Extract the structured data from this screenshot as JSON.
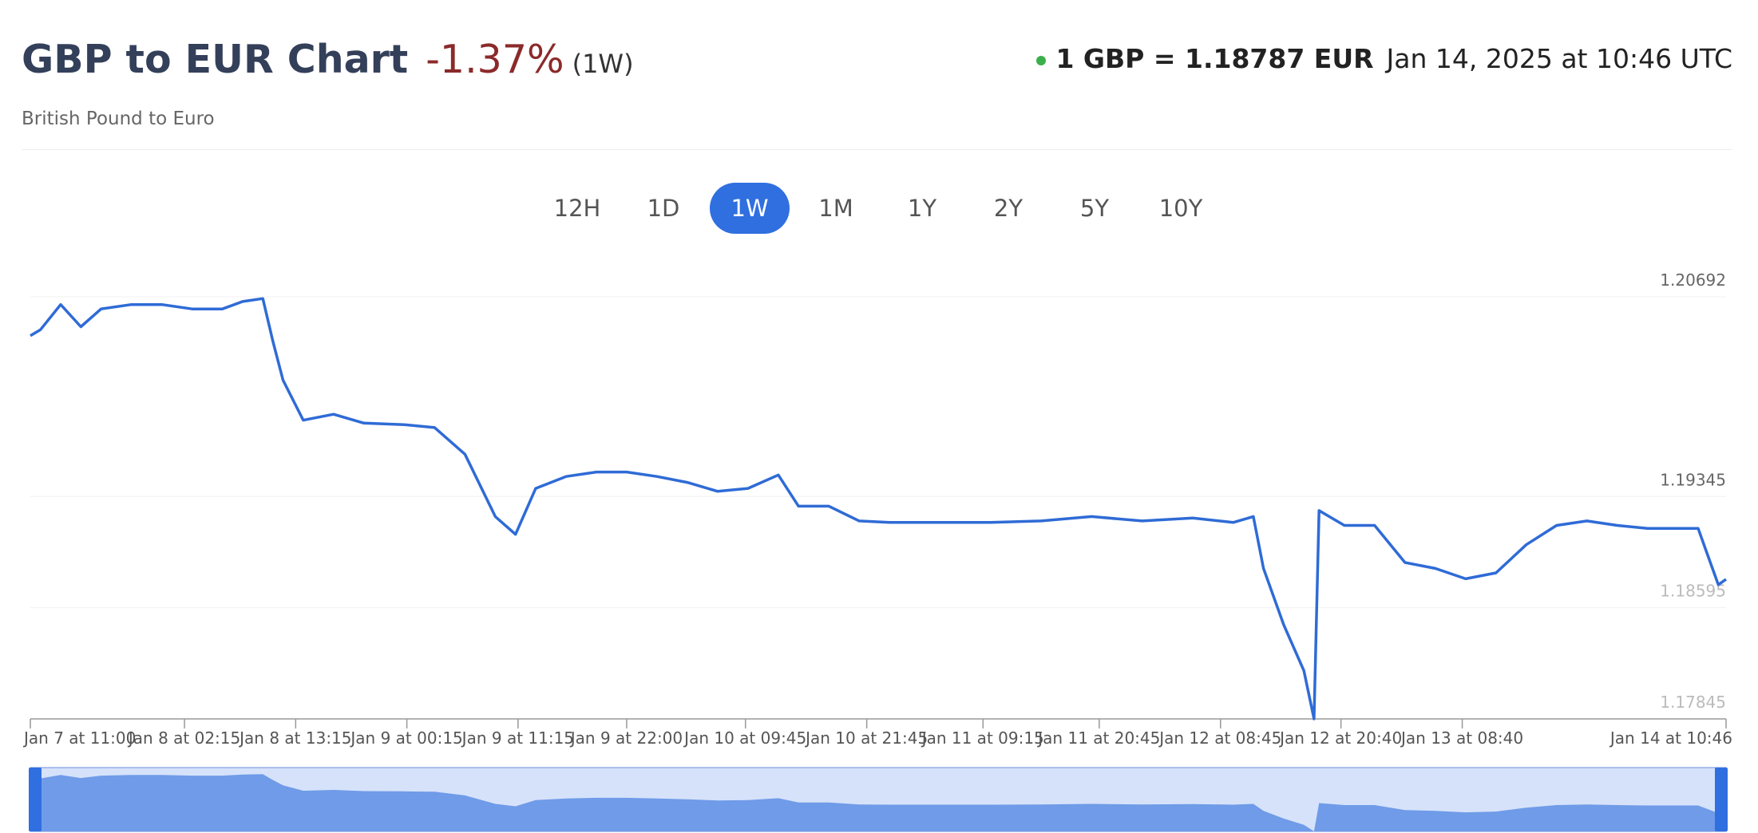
{
  "header": {
    "title": "GBP to EUR Chart",
    "change": "-1.37%",
    "period": "(1W)",
    "subtitle": "British Pound to Euro",
    "rate": "1 GBP = 1.18787 EUR",
    "timestamp": "Jan 14, 2025 at 10:46 UTC"
  },
  "ranges": [
    "12H",
    "1D",
    "1W",
    "1M",
    "1Y",
    "2Y",
    "5Y",
    "10Y"
  ],
  "selected_range": "1W",
  "chart_data": {
    "type": "line",
    "color": "#2f6bd6",
    "x": [
      "2025-01-07T11:00",
      "2025-01-07T12:00",
      "2025-01-07T14:00",
      "2025-01-07T16:00",
      "2025-01-07T18:00",
      "2025-01-07T21:00",
      "2025-01-08T00:00",
      "2025-01-08T03:00",
      "2025-01-08T06:00",
      "2025-01-08T08:00",
      "2025-01-08T10:00",
      "2025-01-08T11:00",
      "2025-01-08T12:00",
      "2025-01-08T14:00",
      "2025-01-08T17:00",
      "2025-01-08T20:00",
      "2025-01-09T00:00",
      "2025-01-09T03:00",
      "2025-01-09T06:00",
      "2025-01-09T09:00",
      "2025-01-09T11:00",
      "2025-01-09T13:00",
      "2025-01-09T16:00",
      "2025-01-09T19:00",
      "2025-01-09T22:00",
      "2025-01-10T01:00",
      "2025-01-10T04:00",
      "2025-01-10T07:00",
      "2025-01-10T10:00",
      "2025-01-10T13:00",
      "2025-01-10T15:00",
      "2025-01-10T18:00",
      "2025-01-10T21:00",
      "2025-01-11T00:00",
      "2025-01-11T05:00",
      "2025-01-11T10:00",
      "2025-01-11T15:00",
      "2025-01-11T20:00",
      "2025-01-12T01:00",
      "2025-01-12T06:00",
      "2025-01-12T10:00",
      "2025-01-12T12:00",
      "2025-01-12T13:00",
      "2025-01-12T15:00",
      "2025-01-12T17:00",
      "2025-01-12T18:00",
      "2025-01-12T18:30",
      "2025-01-12T21:00",
      "2025-01-13T00:00",
      "2025-01-13T03:00",
      "2025-01-13T06:00",
      "2025-01-13T09:00",
      "2025-01-13T12:00",
      "2025-01-13T15:00",
      "2025-01-13T18:00",
      "2025-01-13T21:00",
      "2025-01-14T00:00",
      "2025-01-14T03:00",
      "2025-01-14T06:00",
      "2025-01-14T08:00",
      "2025-01-14T09:00",
      "2025-01-14T10:00",
      "2025-01-14T10:46"
    ],
    "values": [
      1.2043,
      1.2047,
      1.2064,
      1.2049,
      1.2061,
      1.2064,
      1.2064,
      1.2061,
      1.2061,
      1.2066,
      1.2068,
      1.2039,
      1.2013,
      1.1986,
      1.199,
      1.1984,
      1.1983,
      1.1981,
      1.1963,
      1.1921,
      1.1909,
      1.194,
      1.1948,
      1.1951,
      1.1951,
      1.1948,
      1.1944,
      1.1938,
      1.194,
      1.1949,
      1.1928,
      1.1928,
      1.1918,
      1.1917,
      1.1917,
      1.1917,
      1.1918,
      1.1921,
      1.1918,
      1.192,
      1.1917,
      1.1921,
      1.1886,
      1.1848,
      1.1817,
      1.17845,
      1.1925,
      1.1915,
      1.1915,
      1.189,
      1.1886,
      1.1879,
      1.1883,
      1.1902,
      1.1915,
      1.1918,
      1.1915,
      1.1913,
      1.1913,
      1.1913,
      1.1894,
      1.1875,
      1.18787
    ],
    "xlim": [
      "2025-01-07T11:00",
      "2025-01-14T10:46"
    ],
    "xticks": [
      {
        "value": "2025-01-07T11:00",
        "label": "Jan 7 at 11:00"
      },
      {
        "value": "2025-01-08T02:15",
        "label": "Jan 8 at 02:15"
      },
      {
        "value": "2025-01-08T13:15",
        "label": "Jan 8 at 13:15"
      },
      {
        "value": "2025-01-09T00:15",
        "label": "Jan 9 at 00:15"
      },
      {
        "value": "2025-01-09T11:15",
        "label": "Jan 9 at 11:15"
      },
      {
        "value": "2025-01-09T22:00",
        "label": "Jan 9 at 22:00"
      },
      {
        "value": "2025-01-10T09:45",
        "label": "Jan 10 at 09:45"
      },
      {
        "value": "2025-01-10T21:45",
        "label": "Jan 10 at 21:45"
      },
      {
        "value": "2025-01-11T09:15",
        "label": "Jan 11 at 09:15"
      },
      {
        "value": "2025-01-11T20:45",
        "label": "Jan 11 at 20:45"
      },
      {
        "value": "2025-01-12T08:45",
        "label": "Jan 12 at 08:45"
      },
      {
        "value": "2025-01-12T20:40",
        "label": "Jan 12 at 20:40"
      },
      {
        "value": "2025-01-13T08:40",
        "label": "Jan 13 at 08:40"
      },
      {
        "value": "2025-01-14T10:46",
        "label": "Jan 14 at 10:46"
      }
    ],
    "ylim": [
      1.17845,
      1.20692
    ],
    "yticks": [
      1.17845,
      1.18595,
      1.19345,
      1.20692
    ],
    "grid": true
  }
}
